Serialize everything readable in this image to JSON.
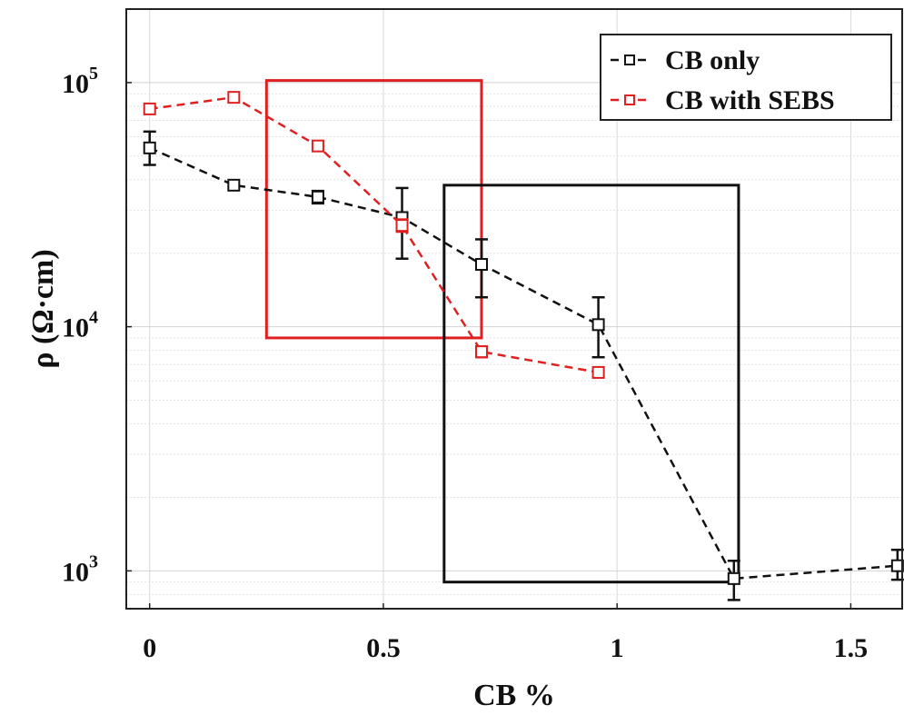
{
  "chart_data": {
    "type": "line",
    "xlabel": "CB %",
    "ylabel": "ρ (Ω·cm)",
    "xlim": [
      -0.05,
      1.61
    ],
    "ylim": [
      700,
      200000
    ],
    "yscale": "log",
    "grid": true,
    "legend_position": "top-right",
    "x_ticks": [
      {
        "value": 0,
        "label": "0"
      },
      {
        "value": 0.5,
        "label": "0.5"
      },
      {
        "value": 1,
        "label": "1"
      },
      {
        "value": 1.5,
        "label": "1.5"
      }
    ],
    "y_ticks": [
      {
        "value": 1000,
        "base": "10",
        "exp": "3"
      },
      {
        "value": 10000,
        "base": "10",
        "exp": "4"
      },
      {
        "value": 100000,
        "base": "10",
        "exp": "5"
      }
    ],
    "series": [
      {
        "name": "CB only",
        "color": "#111111",
        "x": [
          0,
          0.18,
          0.36,
          0.54,
          0.71,
          0.96,
          1.25,
          1.6
        ],
        "y": [
          54000,
          38000,
          34000,
          28000,
          18000,
          10200,
          930,
          1050
        ],
        "err_lo": [
          8000,
          1500,
          2000,
          9000,
          4800,
          2700,
          170,
          130
        ],
        "err_hi": [
          9000,
          1500,
          2000,
          9000,
          4800,
          3000,
          170,
          170
        ]
      },
      {
        "name": "CB with SEBS",
        "color": "#e02020",
        "x": [
          0,
          0.18,
          0.36,
          0.54,
          0.71,
          0.96
        ],
        "y": [
          78000,
          87000,
          55000,
          26000,
          7900,
          6500
        ],
        "err_lo": [
          2000,
          2000,
          2000,
          1500,
          400,
          300
        ],
        "err_hi": [
          2000,
          2000,
          2000,
          1500,
          400,
          300
        ]
      }
    ],
    "annotations": [
      {
        "shape": "rectangle",
        "color": "#e02020",
        "x_range": [
          0.25,
          0.71
        ],
        "y_range": [
          9000,
          102000
        ]
      },
      {
        "shape": "rectangle",
        "color": "#111111",
        "x_range": [
          0.63,
          1.26
        ],
        "y_range": [
          900,
          38000
        ]
      }
    ]
  }
}
